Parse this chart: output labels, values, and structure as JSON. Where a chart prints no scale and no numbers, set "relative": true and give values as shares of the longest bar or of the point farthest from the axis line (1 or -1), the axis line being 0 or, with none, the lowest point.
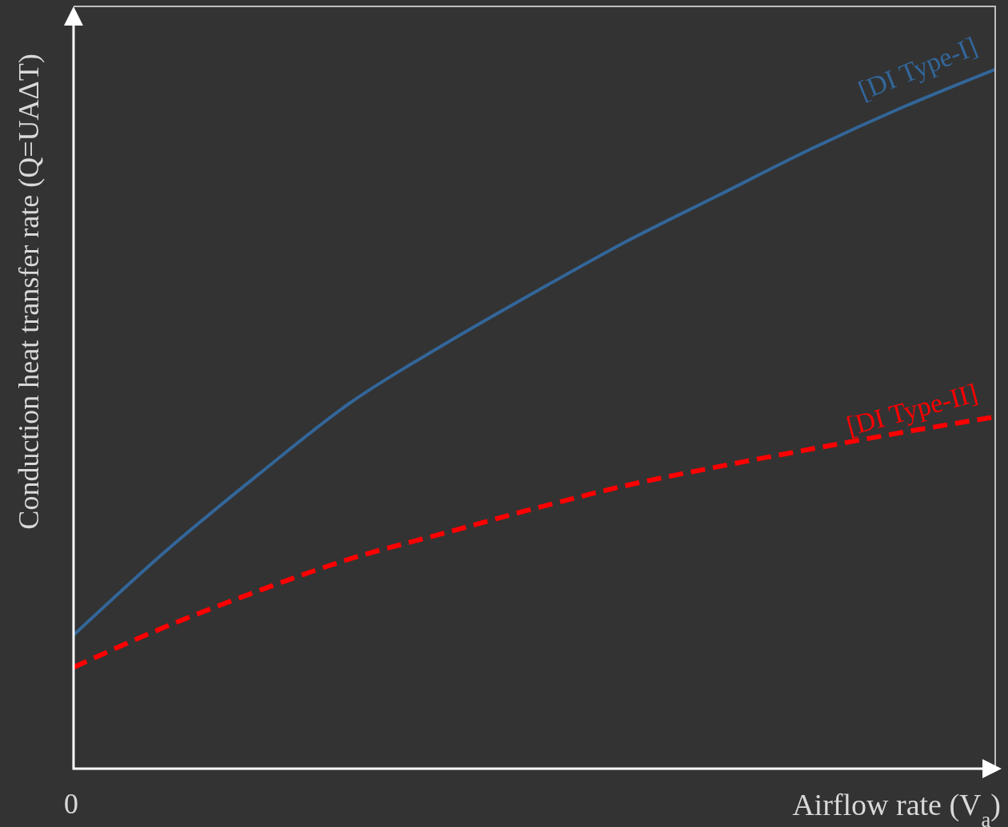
{
  "chart_data": {
    "type": "line",
    "relative": true,
    "xlabel": "Airflow rate (V$_{a}$)",
    "ylabel": "Conduction heat transfer rate (Q=UAΔT)",
    "annotations": [
      "0"
    ],
    "categories": [
      null,
      null,
      null,
      null,
      null,
      null,
      null,
      null,
      null,
      null,
      null
    ],
    "legend": false,
    "grid": false,
    "marker": "none",
    "series": [
      {
        "name": "[DI Type-I]",
        "color": "#336699",
        "line_style": "solid",
        "values": [
          0.191,
          0.311,
          0.42,
          0.523,
          0.605,
          0.681,
          0.754,
          0.82,
          0.886,
          0.946,
          1
        ]
      },
      {
        "name": "[DI Type-II]",
        "color": "#ff0000",
        "line_style": "dashed",
        "values": [
          0.145,
          0.203,
          0.254,
          0.3,
          0.336,
          0.372,
          0.405,
          0.432,
          0.457,
          0.481,
          0.503
        ]
      }
    ]
  }
}
